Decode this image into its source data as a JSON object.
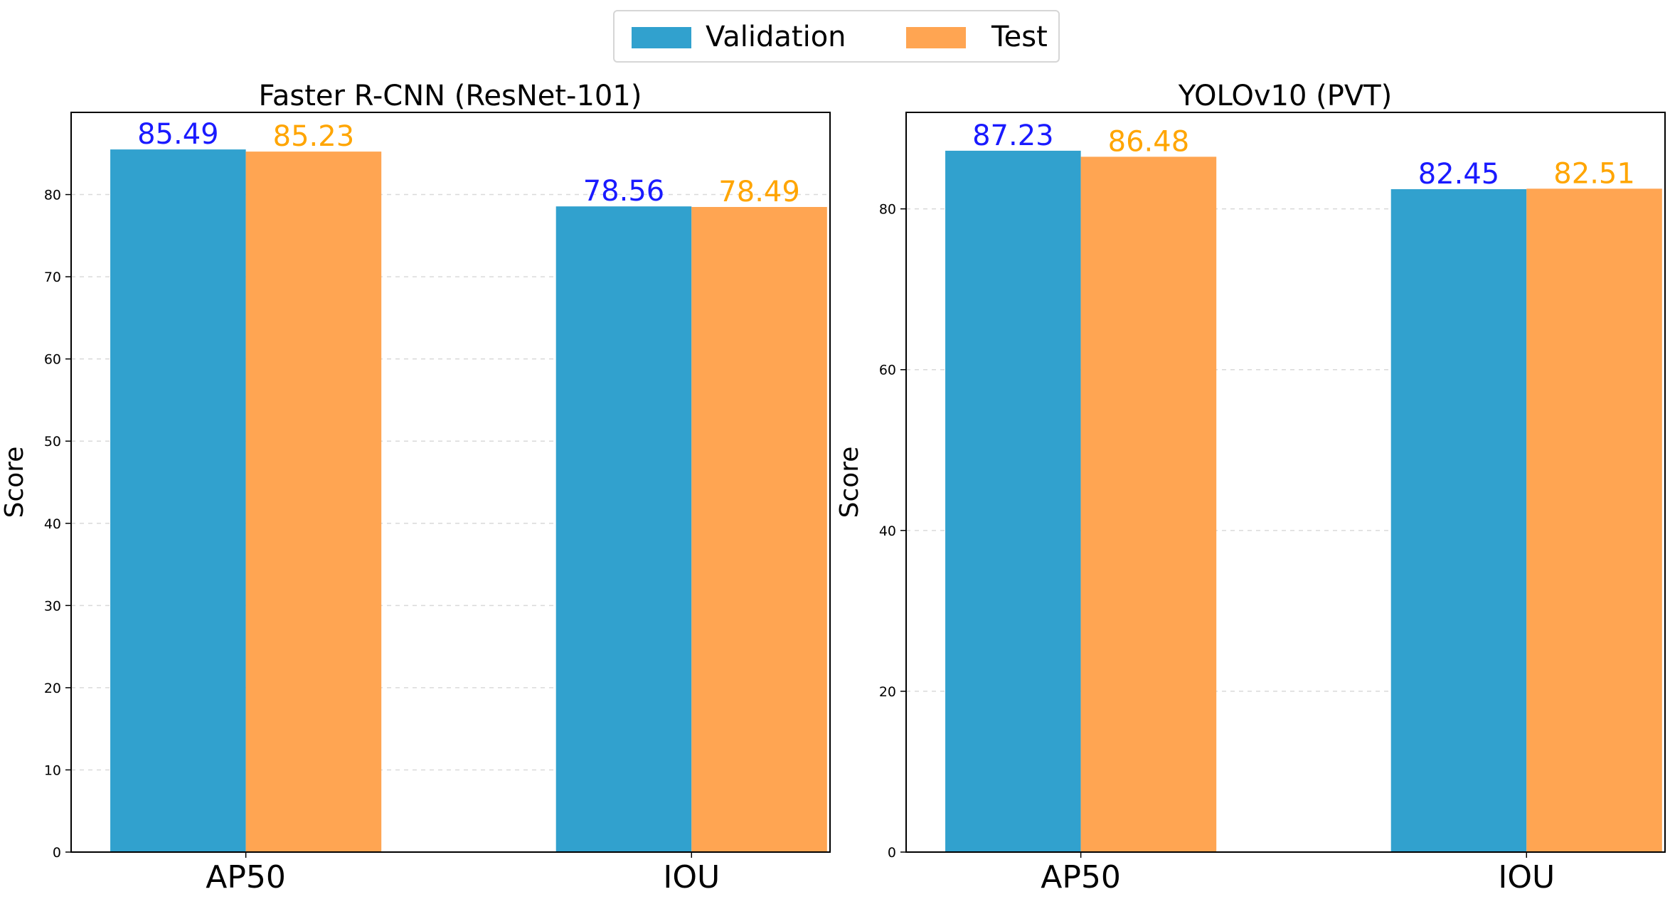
{
  "legend": [
    {
      "label": "Validation",
      "color": "#31a1ce"
    },
    {
      "label": "Test",
      "color": "#ffa552"
    }
  ],
  "chart_data": [
    {
      "type": "bar",
      "title": "Faster R-CNN (ResNet-101)",
      "categories": [
        "AP50",
        "IOU"
      ],
      "series": [
        {
          "name": "Validation",
          "values": [
            85.49,
            78.56
          ],
          "color": "#31a1ce",
          "label_color": "#1a1aff"
        },
        {
          "name": "Test",
          "values": [
            85.23,
            78.49
          ],
          "color": "#ffa552",
          "label_color": "#ffa500"
        }
      ],
      "value_labels": {
        "Validation": [
          "85.49",
          "78.56"
        ],
        "Test": [
          "85.23",
          "78.49"
        ]
      },
      "xlabel": "",
      "ylabel": "Score",
      "ylim": [
        0,
        90
      ],
      "yticks": [
        0,
        10,
        20,
        30,
        40,
        50,
        60,
        70,
        80
      ],
      "grid": true
    },
    {
      "type": "bar",
      "title": "YOLOv10 (PVT)",
      "categories": [
        "AP50",
        "IOU"
      ],
      "series": [
        {
          "name": "Validation",
          "values": [
            87.23,
            82.45
          ],
          "color": "#31a1ce",
          "label_color": "#1a1aff"
        },
        {
          "name": "Test",
          "values": [
            86.48,
            82.51
          ],
          "color": "#ffa552",
          "label_color": "#ffa500"
        }
      ],
      "value_labels": {
        "Validation": [
          "87.23",
          "82.45"
        ],
        "Test": [
          "86.48",
          "82.51"
        ]
      },
      "xlabel": "",
      "ylabel": "Score",
      "ylim": [
        0,
        92
      ],
      "yticks": [
        0,
        20,
        40,
        60,
        80
      ],
      "grid": true
    }
  ]
}
